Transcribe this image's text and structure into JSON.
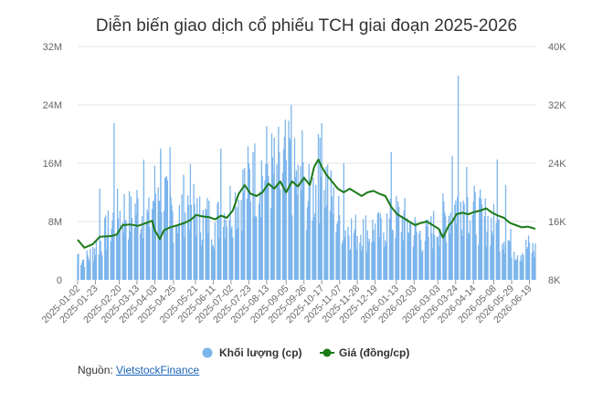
{
  "chart_data": {
    "type": "bar+line",
    "title": "Diễn biến giao dịch cổ phiếu TCH giai đoạn 2025-2026",
    "y_left": {
      "ticks": [
        "32M",
        "24M",
        "16M",
        "8M",
        "0"
      ],
      "range": [
        0,
        32000000
      ]
    },
    "y_right": {
      "ticks": [
        "40K",
        "32K",
        "24K",
        "16K",
        "8K"
      ],
      "range": [
        8000,
        40000
      ]
    },
    "x_range": [
      "2025-01-02",
      "2026-06-26"
    ],
    "x_ticks": [
      "2025-01-02",
      "2025-01-23",
      "2025-02-20",
      "2025-03-13",
      "2025-04-03",
      "2025-04-25",
      "2025-05-21",
      "2025-06-11",
      "2025-07-02",
      "2025-07-23",
      "2025-08-13",
      "2025-09-05",
      "2025-09-26",
      "2025-10-17",
      "2025-11-07",
      "2025-11-28",
      "2025-12-19",
      "2026-01-13",
      "2026-02-03",
      "2026-03-03",
      "2026-03-24",
      "2026-04-14",
      "2026-05-08",
      "2026-05-29",
      "2026-06-19"
    ],
    "series": [
      {
        "name": "Khối lượng (cp)",
        "type": "bar",
        "axis": "left",
        "color": "#7cb5ec",
        "points": [
          [
            "2025-01-02",
            3500000.0
          ],
          [
            "2025-01-09",
            2800000.0
          ],
          [
            "2025-01-16",
            3200000.0
          ],
          [
            "2025-01-23",
            4500000.0
          ],
          [
            "2025-01-30",
            5500000.0
          ],
          [
            "2025-02-06",
            6500000.0
          ],
          [
            "2025-02-13",
            8000000.0
          ],
          [
            "2025-02-20",
            9000000.0
          ],
          [
            "2025-02-27",
            9500000.0
          ],
          [
            "2025-03-06",
            8500000.0
          ],
          [
            "2025-03-13",
            10000000.0
          ],
          [
            "2025-03-20",
            9000000.0
          ],
          [
            "2025-03-27",
            8000000.0
          ],
          [
            "2025-04-03",
            12000000.0
          ],
          [
            "2025-04-10",
            14500000.0
          ],
          [
            "2025-04-17",
            10000000.0
          ],
          [
            "2025-04-24",
            9000000.0
          ],
          [
            "2025-05-01",
            8500000.0
          ],
          [
            "2025-05-08",
            10500000.0
          ],
          [
            "2025-05-15",
            11000000.0
          ],
          [
            "2025-05-22",
            9000000.0
          ],
          [
            "2025-05-29",
            8000000.0
          ],
          [
            "2025-06-05",
            8500000.0
          ],
          [
            "2025-06-12",
            7500000.0
          ],
          [
            "2025-06-19",
            8500000.0
          ],
          [
            "2025-06-26",
            9500000.0
          ],
          [
            "2025-07-03",
            10500000.0
          ],
          [
            "2025-07-10",
            11000000.0
          ],
          [
            "2025-07-17",
            12500000.0
          ],
          [
            "2025-07-24",
            13500000.0
          ],
          [
            "2025-07-31",
            14000000.0
          ],
          [
            "2025-08-07",
            15000000.0
          ],
          [
            "2025-08-14",
            15500000.0
          ],
          [
            "2025-08-21",
            14500000.0
          ],
          [
            "2025-08-28",
            13000000.0
          ],
          [
            "2025-09-04",
            16000000.0
          ],
          [
            "2025-09-11",
            14500000.0
          ],
          [
            "2025-09-18",
            13000000.0
          ],
          [
            "2025-09-25",
            12000000.0
          ],
          [
            "2025-10-02",
            11000000.0
          ],
          [
            "2025-10-09",
            12500000.0
          ],
          [
            "2025-10-16",
            14000000.0
          ],
          [
            "2025-10-23",
            13500000.0
          ],
          [
            "2025-10-30",
            10000000.0
          ],
          [
            "2025-11-06",
            8500000.0
          ],
          [
            "2025-11-13",
            7500000.0
          ],
          [
            "2025-11-20",
            7000000.0
          ],
          [
            "2025-11-27",
            6500000.0
          ],
          [
            "2025-12-04",
            7000000.0
          ],
          [
            "2025-12-11",
            6500000.0
          ],
          [
            "2025-12-18",
            7000000.0
          ],
          [
            "2025-12-25",
            6500000.0
          ],
          [
            "2026-01-01",
            7500000.0
          ],
          [
            "2026-01-08",
            8000000.0
          ],
          [
            "2026-01-15",
            8500000.0
          ],
          [
            "2026-01-22",
            8000000.0
          ],
          [
            "2026-01-29",
            7500000.0
          ],
          [
            "2026-02-05",
            6500000.0
          ],
          [
            "2026-02-12",
            6000000.0
          ],
          [
            "2026-02-19",
            6000000.0
          ],
          [
            "2026-02-26",
            7000000.0
          ],
          [
            "2026-03-05",
            8000000.0
          ],
          [
            "2026-03-12",
            8500000.0
          ],
          [
            "2026-03-19",
            9500000.0
          ],
          [
            "2026-03-26",
            10500000.0
          ],
          [
            "2026-04-02",
            11000000.0
          ],
          [
            "2026-04-09",
            10000000.0
          ],
          [
            "2026-04-16",
            9000000.0
          ],
          [
            "2026-04-23",
            8500000.0
          ],
          [
            "2026-04-30",
            8000000.0
          ],
          [
            "2026-05-07",
            7500000.0
          ],
          [
            "2026-05-14",
            7000000.0
          ],
          [
            "2026-05-21",
            6000000.0
          ],
          [
            "2026-05-28",
            5000000.0
          ],
          [
            "2026-06-04",
            4000000.0
          ],
          [
            "2026-06-11",
            4000000.0
          ],
          [
            "2026-06-18",
            4500000.0
          ],
          [
            "2026-06-25",
            4000000.0
          ]
        ],
        "spikes": [
          [
            "2025-01-28",
            12500000.0
          ],
          [
            "2025-02-14",
            21500000.0
          ],
          [
            "2025-03-21",
            16500000.0
          ],
          [
            "2025-04-10",
            18000000.0
          ],
          [
            "2025-04-21",
            18200000.0
          ],
          [
            "2025-06-20",
            18000000.0
          ],
          [
            "2025-07-28",
            17500000.0
          ],
          [
            "2025-08-27",
            21000000.0
          ],
          [
            "2025-09-09",
            19500000.0
          ],
          [
            "2025-09-11",
            24000000.0
          ],
          [
            "2025-09-24",
            20500000.0
          ],
          [
            "2025-10-13",
            20000000.0
          ],
          [
            "2025-10-17",
            21500000.0
          ],
          [
            "2025-11-12",
            16000000.0
          ],
          [
            "2026-01-07",
            17500000.0
          ],
          [
            "2026-03-20",
            17000000.0
          ],
          [
            "2026-03-27",
            28000000.0
          ],
          [
            "2026-04-06",
            15500000.0
          ],
          [
            "2026-05-12",
            16500000.0
          ],
          [
            "2026-05-22",
            13000000.0
          ]
        ]
      },
      {
        "name": "Giá (đồng/cp)",
        "type": "line",
        "axis": "right",
        "color": "#1c7a19",
        "points": [
          [
            "2025-01-02",
            13500.0
          ],
          [
            "2025-01-10",
            12400.0
          ],
          [
            "2025-01-20",
            12900.0
          ],
          [
            "2025-01-28",
            13900.0
          ],
          [
            "2025-02-10",
            14000.0
          ],
          [
            "2025-02-17",
            14200.0
          ],
          [
            "2025-02-24",
            15500.0
          ],
          [
            "2025-03-05",
            15600.0
          ],
          [
            "2025-03-14",
            15400.0
          ],
          [
            "2025-03-24",
            15800.0
          ],
          [
            "2025-03-31",
            16100.0
          ],
          [
            "2025-04-03",
            14800.0
          ],
          [
            "2025-04-09",
            13600.0
          ],
          [
            "2025-04-14",
            14800.0
          ],
          [
            "2025-04-21",
            15200.0
          ],
          [
            "2025-04-30",
            15500.0
          ],
          [
            "2025-05-08",
            15800.0
          ],
          [
            "2025-05-15",
            16200.0
          ],
          [
            "2025-05-22",
            16900.0
          ],
          [
            "2025-05-29",
            16700.0
          ],
          [
            "2025-06-06",
            16600.0
          ],
          [
            "2025-06-13",
            16300.0
          ],
          [
            "2025-06-20",
            16800.0
          ],
          [
            "2025-06-27",
            16500.0
          ],
          [
            "2025-07-04",
            17500.0
          ],
          [
            "2025-07-11",
            19800.0
          ],
          [
            "2025-07-18",
            21000.0
          ],
          [
            "2025-07-25",
            19800.0
          ],
          [
            "2025-08-01",
            19500.0
          ],
          [
            "2025-08-08",
            20000.0
          ],
          [
            "2025-08-15",
            21200.0
          ],
          [
            "2025-08-22",
            20500.0
          ],
          [
            "2025-08-29",
            21500.0
          ],
          [
            "2025-09-05",
            20000.0
          ],
          [
            "2025-09-12",
            21500.0
          ],
          [
            "2025-09-19",
            20800.0
          ],
          [
            "2025-09-26",
            22000.0
          ],
          [
            "2025-10-03",
            21000.0
          ],
          [
            "2025-10-08",
            23500.0
          ],
          [
            "2025-10-13",
            24500.0
          ],
          [
            "2025-10-17",
            23500.0
          ],
          [
            "2025-10-22",
            22500.0
          ],
          [
            "2025-10-29",
            21500.0
          ],
          [
            "2025-11-05",
            20500.0
          ],
          [
            "2025-11-12",
            20000.0
          ],
          [
            "2025-11-19",
            20500.0
          ],
          [
            "2025-11-26",
            20000.0
          ],
          [
            "2025-12-03",
            19500.0
          ],
          [
            "2025-12-10",
            20000.0
          ],
          [
            "2025-12-17",
            20200.0
          ],
          [
            "2025-12-24",
            19800.0
          ],
          [
            "2025-12-31",
            19500.0
          ],
          [
            "2026-01-07",
            18000.0
          ],
          [
            "2026-01-14",
            17000.0
          ],
          [
            "2026-01-21",
            16500.0
          ],
          [
            "2026-01-28",
            16000.0
          ],
          [
            "2026-02-04",
            15500.0
          ],
          [
            "2026-02-11",
            15800.0
          ],
          [
            "2026-02-18",
            16000.0
          ],
          [
            "2026-02-25",
            15500.0
          ],
          [
            "2026-03-04",
            15000.0
          ],
          [
            "2026-03-09",
            13800.0
          ],
          [
            "2026-03-16",
            15500.0
          ],
          [
            "2026-03-20",
            16000.0
          ],
          [
            "2026-03-25",
            17000.0
          ],
          [
            "2026-04-01",
            17200.0
          ],
          [
            "2026-04-08",
            17000.0
          ],
          [
            "2026-04-15",
            17300.0
          ],
          [
            "2026-04-22",
            17500.0
          ],
          [
            "2026-04-29",
            17800.0
          ],
          [
            "2026-05-06",
            17200.0
          ],
          [
            "2026-05-13",
            16800.0
          ],
          [
            "2026-05-20",
            16500.0
          ],
          [
            "2026-05-27",
            15800.0
          ],
          [
            "2026-06-03",
            15500.0
          ],
          [
            "2026-06-10",
            15200.0
          ],
          [
            "2026-06-17",
            15300.0
          ],
          [
            "2026-06-26",
            15000.0
          ]
        ]
      }
    ],
    "legend": {
      "position": "bottom"
    }
  },
  "source": {
    "label": "Nguồn:",
    "link_text": "VietstockFinance"
  },
  "colors": {
    "grid": "#e6e6e6",
    "axis_text": "#666666",
    "link": "#1a63b8"
  }
}
